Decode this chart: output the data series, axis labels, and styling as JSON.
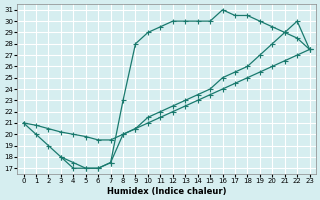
{
  "xlabel": "Humidex (Indice chaleur)",
  "bg_color": "#d6eef0",
  "line_color": "#1a7a6e",
  "grid_color": "#ffffff",
  "xlim": [
    -0.5,
    23.5
  ],
  "ylim": [
    16.5,
    31.5
  ],
  "yticks": [
    17,
    18,
    19,
    20,
    21,
    22,
    23,
    24,
    25,
    26,
    27,
    28,
    29,
    30,
    31
  ],
  "xticks": [
    0,
    1,
    2,
    3,
    4,
    5,
    6,
    7,
    8,
    9,
    10,
    11,
    12,
    13,
    14,
    15,
    16,
    17,
    18,
    19,
    20,
    21,
    22,
    23
  ],
  "line1_x": [
    0,
    1,
    2,
    3,
    4,
    5,
    6,
    7,
    8,
    9,
    10,
    11,
    12,
    13,
    14,
    15,
    16,
    17,
    18,
    19,
    20,
    21,
    22,
    23
  ],
  "line1_y": [
    21,
    20,
    19,
    18,
    17,
    17,
    17,
    17.5,
    23,
    28,
    29,
    29.5,
    30,
    30,
    30,
    30,
    31,
    30.5,
    30.5,
    30,
    29.5,
    29,
    28.5,
    27.5
  ],
  "line2_x": [
    0,
    1,
    2,
    3,
    4,
    5,
    6,
    7,
    8,
    9,
    10,
    11,
    12,
    13,
    14,
    15,
    16,
    17,
    18,
    19,
    20,
    21,
    22,
    23
  ],
  "line2_y": [
    21,
    20.8,
    20.5,
    20.2,
    20,
    19.8,
    19.5,
    19.5,
    20,
    20.5,
    21,
    21.5,
    22,
    22.5,
    23,
    23.5,
    24,
    24.5,
    25,
    25.5,
    26,
    26.5,
    27,
    27.5
  ],
  "line3_x": [
    3,
    4,
    5,
    6,
    7,
    8,
    9,
    10,
    11,
    12,
    13,
    14,
    15,
    16,
    17,
    18,
    19,
    20,
    21,
    22,
    23
  ],
  "line3_y": [
    18,
    17.5,
    17,
    17,
    17.5,
    20,
    20.5,
    21.5,
    22,
    22.5,
    23,
    23.5,
    24,
    25,
    25.5,
    26,
    27,
    28,
    29,
    30,
    27.5
  ]
}
